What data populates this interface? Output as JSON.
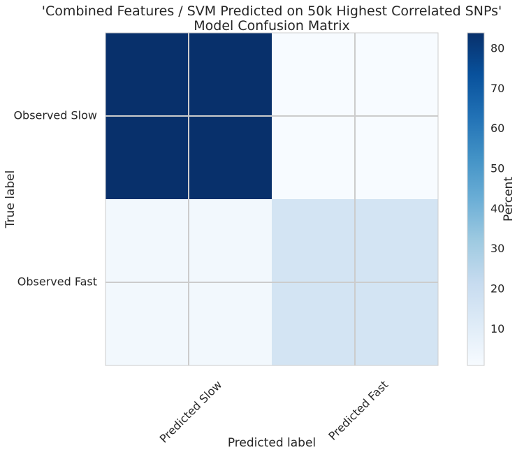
{
  "chart_data": {
    "type": "heatmap",
    "title_line1": "'Combined Features / SVM Predicted on 50k Highest Correlated SNPs'",
    "title_line2": "Model Confusion Matrix",
    "xlabel": "Predicted label",
    "ylabel": "True label",
    "x_categories": [
      "Predicted Slow",
      "Predicted Fast"
    ],
    "y_categories": [
      "Observed Slow",
      "Observed Fast"
    ],
    "values": [
      [
        84,
        1
      ],
      [
        3,
        16
      ]
    ],
    "colorbar": {
      "label": "Percent",
      "min": 1,
      "max": 84,
      "ticks": [
        10,
        20,
        30,
        40,
        50,
        60,
        70,
        80
      ]
    },
    "colormap": "Blues",
    "colors": {
      "grid": "#cccccc",
      "frame": "#cccccc"
    }
  }
}
